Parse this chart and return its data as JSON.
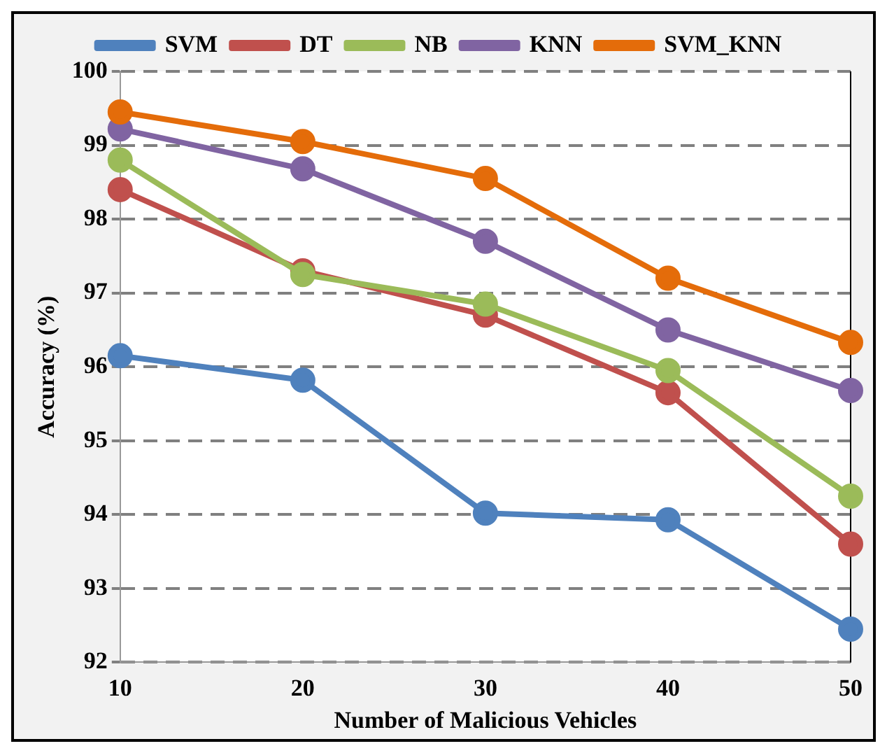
{
  "chart_data": {
    "type": "line",
    "xlabel": "Number of Malicious Vehicles",
    "ylabel": "Accuracy (%)",
    "categories": [
      "10",
      "20",
      "30",
      "40",
      "50"
    ],
    "series": [
      {
        "name": "SVM",
        "color": "#4f81bd",
        "values": [
          96.15,
          95.82,
          94.02,
          93.93,
          92.45
        ]
      },
      {
        "name": "DT",
        "color": "#c0504d",
        "values": [
          98.4,
          97.3,
          96.7,
          95.65,
          93.6
        ]
      },
      {
        "name": "NB",
        "color": "#9bbb59",
        "values": [
          98.8,
          97.25,
          96.85,
          95.95,
          94.25
        ]
      },
      {
        "name": "KNN",
        "color": "#8064a2",
        "values": [
          99.22,
          98.68,
          97.7,
          96.5,
          95.68
        ]
      },
      {
        "name": "SVM_KNN",
        "color": "#e46c0a",
        "values": [
          99.45,
          99.05,
          98.55,
          97.2,
          96.33
        ]
      }
    ],
    "ylim": [
      92,
      100
    ],
    "yticks": [
      92,
      93,
      94,
      95,
      96,
      97,
      98,
      99,
      100
    ],
    "grid": "y",
    "legend": "top",
    "marker": "circle",
    "line_style": "solid"
  }
}
